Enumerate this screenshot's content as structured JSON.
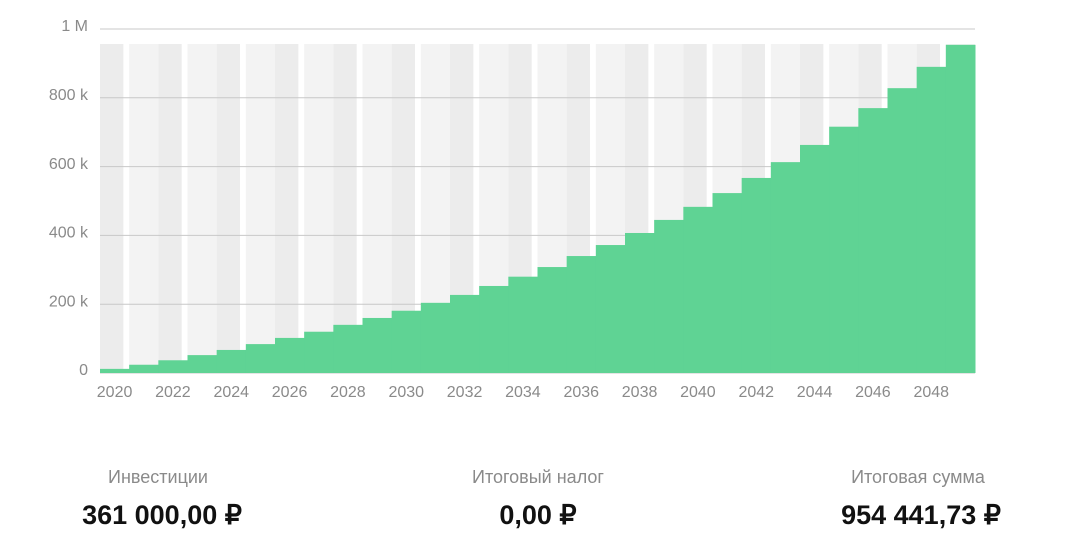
{
  "chart_data": {
    "type": "bar",
    "categories": [
      "2020",
      null,
      "2022",
      null,
      "2024",
      null,
      "2026",
      null,
      "2028",
      null,
      "2030",
      null,
      "2032",
      null,
      "2034",
      null,
      "2036",
      null,
      "2038",
      null,
      "2040",
      null,
      "2042",
      null,
      "2044",
      null,
      "2046",
      null,
      "2048",
      null
    ],
    "values": [
      12000,
      24000,
      37000,
      52000,
      67000,
      84000,
      102000,
      120000,
      140000,
      160000,
      181000,
      204000,
      227000,
      253000,
      280000,
      308000,
      340000,
      372000,
      407000,
      445000,
      483000,
      523000,
      567000,
      613000,
      663000,
      716000,
      770000,
      828000,
      890000,
      954000
    ],
    "color": "#5fd394",
    "ylim": [
      0,
      1000000
    ],
    "yticks": [
      0,
      {
        "value": 200000,
        "label": "200 k"
      },
      {
        "value": 400000,
        "label": "400 k"
      },
      {
        "value": 600000,
        "label": "600 k"
      },
      {
        "value": 800000,
        "label": "800 k"
      },
      {
        "value": 1000000,
        "label": "1 M"
      }
    ],
    "grid": true
  },
  "summary": [
    {
      "label": "Инвестиции",
      "value": "361 000,00 ₽"
    },
    {
      "label": "Итоговый налог",
      "value": "0,00 ₽"
    },
    {
      "label": "Итоговая сумма",
      "value": "954 441,73 ₽"
    }
  ]
}
